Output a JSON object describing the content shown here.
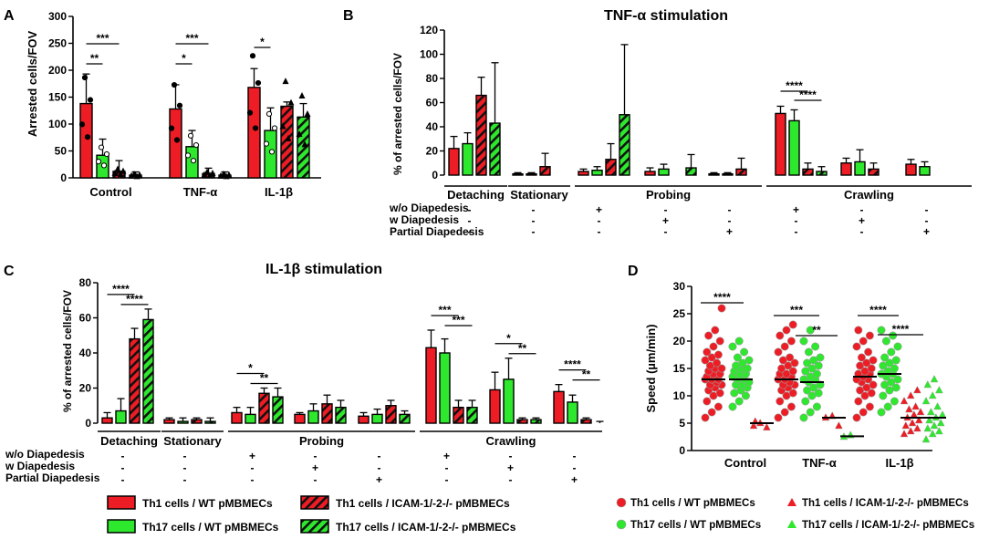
{
  "colors": {
    "red": "#ee1c24",
    "green": "#2ee82e",
    "hatch_red": "#ee1c24",
    "hatch_green": "#2ee82e",
    "black": "#000000",
    "ink": "#000000"
  },
  "row_labels": [
    "w/o Diapedesis",
    "w Diapedesis",
    "Partial Diapedesis"
  ],
  "chart_data": [
    {
      "panel": "A",
      "type": "bar",
      "title": "",
      "ylabel": "Arrested cells/FOV",
      "ylim": [
        0,
        300
      ],
      "yticks": [
        0,
        50,
        100,
        150,
        200,
        250,
        300
      ],
      "categories": [
        "Control",
        "TNF-α",
        "IL-1β"
      ],
      "series": [
        {
          "name": "Th1 cells / WT pMBMECs",
          "values": [
            138,
            128,
            168
          ],
          "err": [
            55,
            45,
            35
          ]
        },
        {
          "name": "Th17 cells / WT pMBMECs",
          "values": [
            42,
            58,
            88
          ],
          "err": [
            30,
            30,
            42
          ]
        },
        {
          "name": "Th1 cells / ICAM-1/-2-/- pMBMECs",
          "values": [
            12,
            8,
            133
          ],
          "err": [
            20,
            10,
            8
          ]
        },
        {
          "name": "Th17 cells / ICAM-1/-2-/- pMBMECs",
          "values": [
            5,
            5,
            113
          ],
          "err": [
            6,
            6,
            25
          ]
        }
      ],
      "significance": [
        {
          "cat": 0,
          "from": 0,
          "to": 1,
          "label": "**"
        },
        {
          "cat": 0,
          "from": 0,
          "to": 2,
          "label": "***"
        },
        {
          "cat": 1,
          "from": 0,
          "to": 1,
          "label": "*"
        },
        {
          "cat": 1,
          "from": 0,
          "to": 2,
          "label": "***"
        },
        {
          "cat": 2,
          "from": 0,
          "to": 1,
          "label": "*"
        }
      ]
    },
    {
      "panel": "B",
      "type": "bar",
      "title": "TNF-α stimulation",
      "ylabel": "% of arrested cells/FOV",
      "ylim": [
        0,
        120
      ],
      "yticks": [
        0,
        20,
        40,
        60,
        80,
        100,
        120
      ],
      "groups": [
        {
          "label": "Detaching",
          "values": [
            22,
            26,
            66,
            43
          ],
          "err": [
            10,
            9,
            15,
            50
          ],
          "marks": [
            "-",
            "-",
            "-"
          ]
        },
        {
          "label": "Stationary",
          "values": [
            1,
            1,
            7,
            0
          ],
          "err": [
            1,
            1,
            11,
            0
          ],
          "marks": [
            "-",
            "-",
            "-"
          ]
        },
        {
          "label": "",
          "values": [
            3,
            4,
            13,
            50
          ],
          "err": [
            2,
            3,
            13,
            58
          ],
          "marks": [
            "+",
            "-",
            "-"
          ]
        },
        {
          "label": "Probing",
          "values": [
            3,
            5,
            0,
            6
          ],
          "err": [
            3,
            4,
            0,
            11
          ],
          "marks": [
            "-",
            "+",
            "-"
          ]
        },
        {
          "label": "",
          "values": [
            1,
            1,
            5,
            0
          ],
          "err": [
            1,
            1,
            9,
            0
          ],
          "marks": [
            "-",
            "-",
            "+"
          ]
        },
        {
          "label": "",
          "values": [
            51,
            45,
            5,
            3
          ],
          "err": [
            6,
            9,
            5,
            4
          ],
          "marks": [
            "+",
            "-",
            "-"
          ]
        },
        {
          "label": "Crawling",
          "values": [
            10,
            11,
            5,
            0
          ],
          "err": [
            4,
            10,
            5,
            0
          ],
          "marks": [
            "-",
            "+",
            "-"
          ]
        },
        {
          "label": "",
          "values": [
            9,
            7,
            0,
            0
          ],
          "err": [
            4,
            4,
            0,
            0
          ],
          "marks": [
            "-",
            "-",
            "+"
          ]
        }
      ],
      "significance": [
        {
          "group": 5,
          "from": 0,
          "to": 2,
          "label": "****"
        },
        {
          "group": 5,
          "from": 1,
          "to": 3,
          "label": "****"
        }
      ]
    },
    {
      "panel": "C",
      "type": "bar",
      "title": "IL-1β stimulation",
      "ylabel": "% of arrested cells/FOV",
      "ylim": [
        0,
        80
      ],
      "yticks": [
        0,
        20,
        40,
        60,
        80
      ],
      "groups": [
        {
          "label": "Detaching",
          "values": [
            3,
            7,
            48,
            59
          ],
          "err": [
            3,
            7,
            6,
            6
          ],
          "marks": [
            "-",
            "-",
            "-"
          ]
        },
        {
          "label": "Stationary",
          "values": [
            2,
            1,
            2,
            1
          ],
          "err": [
            1,
            2,
            1,
            2
          ],
          "marks": [
            "-",
            "-",
            "-"
          ]
        },
        {
          "label": "",
          "values": [
            6,
            5,
            17,
            15
          ],
          "err": [
            3,
            4,
            3,
            5
          ],
          "marks": [
            "+",
            "-",
            "-"
          ]
        },
        {
          "label": "Probing",
          "values": [
            5,
            7,
            11,
            9
          ],
          "err": [
            1,
            4,
            5,
            4
          ],
          "marks": [
            "-",
            "+",
            "-"
          ]
        },
        {
          "label": "",
          "values": [
            4,
            5,
            10,
            5
          ],
          "err": [
            2,
            3,
            3,
            2
          ],
          "marks": [
            "-",
            "-",
            "+"
          ]
        },
        {
          "label": "",
          "values": [
            43,
            40,
            9,
            9
          ],
          "err": [
            10,
            8,
            4,
            4
          ],
          "marks": [
            "+",
            "-",
            "-"
          ]
        },
        {
          "label": "Crawling",
          "values": [
            19,
            25,
            2,
            2
          ],
          "err": [
            10,
            12,
            1,
            1
          ],
          "marks": [
            "-",
            "+",
            "-"
          ]
        },
        {
          "label": "",
          "values": [
            18,
            12,
            2,
            0
          ],
          "err": [
            4,
            4,
            1,
            1
          ],
          "marks": [
            "-",
            "-",
            "+"
          ]
        }
      ],
      "significance": [
        {
          "group": 0,
          "from": 0,
          "to": 2,
          "label": "****"
        },
        {
          "group": 0,
          "from": 1,
          "to": 3,
          "label": "****"
        },
        {
          "group": 2,
          "from": 0,
          "to": 2,
          "label": "*"
        },
        {
          "group": 2,
          "from": 1,
          "to": 3,
          "label": "**"
        },
        {
          "group": 5,
          "from": 0,
          "to": 2,
          "label": "***"
        },
        {
          "group": 5,
          "from": 1,
          "to": 3,
          "label": "***"
        },
        {
          "group": 6,
          "from": 0,
          "to": 2,
          "label": "*"
        },
        {
          "group": 6,
          "from": 1,
          "to": 3,
          "label": "**"
        },
        {
          "group": 7,
          "from": 0,
          "to": 2,
          "label": "****"
        },
        {
          "group": 7,
          "from": 1,
          "to": 3,
          "label": "**"
        }
      ]
    },
    {
      "panel": "D",
      "type": "scatter",
      "title": "",
      "ylabel": "Speed (µm/min)",
      "ylim": [
        0,
        30
      ],
      "yticks": [
        0,
        5,
        10,
        15,
        20,
        25,
        30
      ],
      "categories": [
        "Control",
        "TNF-α",
        "IL-1β"
      ],
      "series": [
        {
          "name": "Th1 cells / WT pMBMECs",
          "marker": "circle",
          "color": "#ee1c24",
          "medians": [
            13,
            13,
            13.5
          ],
          "points": [
            [
              6,
              7,
              8,
              9,
              10,
              10.5,
              11,
              11.5,
              12,
              12,
              12.5,
              13,
              13,
              13,
              13.5,
              14,
              14,
              14.5,
              15,
              15,
              15.5,
              16,
              16.5,
              17,
              17.5,
              18,
              19,
              20,
              21,
              22,
              26
            ],
            [
              6,
              7,
              8,
              9,
              10,
              10.5,
              11,
              11.5,
              12,
              12,
              12.5,
              13,
              13,
              13.5,
              14,
              14,
              14.5,
              15,
              15.5,
              16,
              16.5,
              17,
              18,
              19,
              20,
              21,
              22,
              23
            ],
            [
              6,
              7,
              8,
              9,
              10,
              10.5,
              11,
              11.5,
              12,
              12.5,
              13,
              13,
              13.5,
              14,
              14,
              14.5,
              15,
              15.5,
              16,
              16.5,
              17,
              18,
              19,
              20,
              21,
              22
            ]
          ]
        },
        {
          "name": "Th17 cells / WT pMBMECs",
          "marker": "circle",
          "color": "#2ee82e",
          "medians": [
            13,
            12.5,
            14
          ],
          "points": [
            [
              8,
              9,
              10,
              10.5,
              11,
              11.5,
              12,
              12,
              12.5,
              13,
              13,
              13.5,
              14,
              14,
              14.5,
              15,
              15,
              15.5,
              16,
              16.5,
              17,
              18,
              19,
              20
            ],
            [
              6,
              7,
              8,
              9,
              10,
              10.5,
              11,
              11.5,
              12,
              12.5,
              13,
              13,
              13.5,
              14,
              14.5,
              15,
              15.5,
              16,
              16.5,
              17,
              18,
              19,
              20,
              22
            ],
            [
              7,
              8,
              9,
              10,
              11,
              11.5,
              12,
              12.5,
              13,
              13.5,
              14,
              14,
              14.5,
              15,
              15.5,
              16,
              16.5,
              17,
              18,
              19,
              20,
              21,
              22
            ]
          ]
        },
        {
          "name": "Th1 cells / ICAM-1/-2-/- pMBMECs",
          "marker": "triangle",
          "color": "#ee1c24",
          "medians": [
            5,
            6,
            6
          ],
          "points": [
            [
              4.5,
              5,
              4.2,
              5.3
            ],
            [
              6,
              6.3,
              4.5
            ],
            [
              3,
              3.5,
              4,
              4.5,
              5,
              5.5,
              6,
              6.5,
              7,
              7.5,
              8,
              9,
              10,
              11
            ]
          ]
        },
        {
          "name": "Th17 cells / ICAM-1/-2-/- pMBMECs",
          "marker": "triangle",
          "color": "#2ee82e",
          "medians": [
            0,
            2.6,
            6
          ],
          "points": [
            [],
            [
              2.5,
              2.8
            ],
            [
              2,
              3,
              3.5,
              4,
              4.5,
              5,
              5.5,
              6,
              6.5,
              7,
              8,
              9,
              10,
              11,
              12,
              13
            ]
          ]
        }
      ],
      "significance": [
        {
          "cat": 0,
          "label": "****",
          "span": "wide"
        },
        {
          "cat": 1,
          "label": "***",
          "span": "wide"
        },
        {
          "cat": 1,
          "label": "**",
          "span": "right"
        },
        {
          "cat": 2,
          "label": "****",
          "span": "wide"
        },
        {
          "cat": 2,
          "label": "****",
          "span": "right"
        }
      ]
    }
  ],
  "panel_letters": {
    "A": "A",
    "B": "B",
    "C": "C",
    "D": "D"
  },
  "legend_bars": [
    "Th1 cells / WT pMBMECs",
    "Th1 cells / ICAM-1/-2-/- pMBMECs",
    "Th17 cells / WT pMBMECs",
    "Th17 cells / ICAM-1/-2-/- pMBMECs"
  ],
  "legend_scatter": [
    "Th1 cells / WT pMBMECs",
    "Th1 cells / ICAM-1/-2-/- pMBMECs",
    "Th17 cells / WT pMBMECs",
    "Th17 cells / ICAM-1/-2-/- pMBMECs"
  ]
}
